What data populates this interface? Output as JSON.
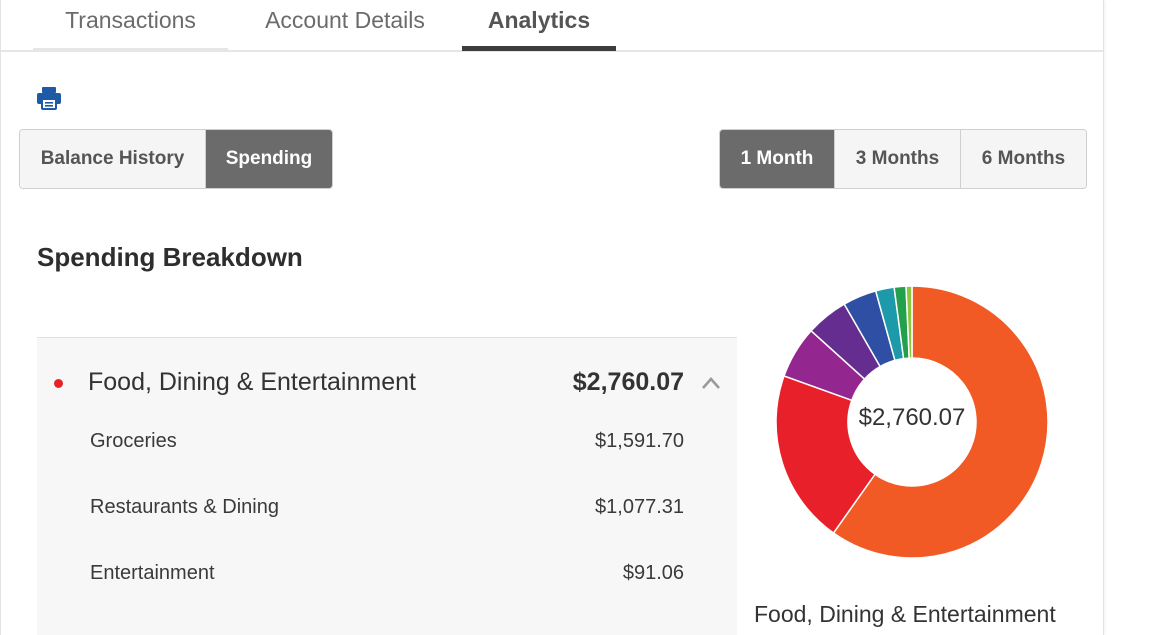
{
  "tabs": [
    {
      "label": "Transactions",
      "active": false
    },
    {
      "label": "Account Details",
      "active": false
    },
    {
      "label": "Analytics",
      "active": true
    }
  ],
  "toolbar": {
    "print_icon": "printer-icon",
    "accent_color": "#1f5aa6"
  },
  "view_toggle": [
    {
      "label": "Balance History",
      "active": false
    },
    {
      "label": "Spending",
      "active": true
    }
  ],
  "range_toggle": [
    {
      "label": "1 Month",
      "active": true
    },
    {
      "label": "3 Months",
      "active": false
    },
    {
      "label": "6 Months",
      "active": false
    }
  ],
  "section_title": "Spending Breakdown",
  "category": {
    "name": "Food, Dining & Entertainment",
    "total": "$2,760.07",
    "dot_color": "#e8202a",
    "expanded": true,
    "items": [
      {
        "label": "Groceries",
        "value": "$1,591.70"
      },
      {
        "label": "Restaurants & Dining",
        "value": "$1,077.31"
      },
      {
        "label": "Entertainment",
        "value": "$91.06"
      }
    ]
  },
  "chart_data": {
    "type": "pie",
    "variant": "donut",
    "center_label": "$2,760.07",
    "caption": "Food, Dining & Entertainment",
    "slices": [
      {
        "value": 0.598,
        "color": "#f15a24"
      },
      {
        "value": 0.207,
        "color": "#e8202a"
      },
      {
        "value": 0.062,
        "color": "#93278f"
      },
      {
        "value": 0.05,
        "color": "#662d91"
      },
      {
        "value": 0.04,
        "color": "#2e4fa3"
      },
      {
        "value": 0.022,
        "color": "#1c9aaa"
      },
      {
        "value": 0.014,
        "color": "#22a04b"
      },
      {
        "value": 0.007,
        "color": "#8cc63f"
      }
    ]
  }
}
